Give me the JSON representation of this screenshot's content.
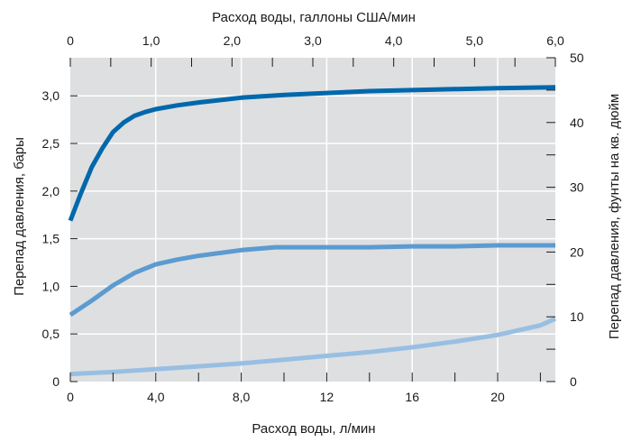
{
  "chart_data": {
    "type": "line",
    "title": "",
    "xlabel_bottom": "Расход воды, л/мин",
    "xlabel_top": "Расход воды, галлоны США/мин",
    "ylabel_left": "Перепад давления, бары",
    "ylabel_right": "Перепад давления, фунты на кв. дюйм",
    "xlim_bottom": [
      0,
      22.7
    ],
    "xlim_top": [
      0,
      6.0
    ],
    "ylim_left": [
      0,
      3.4
    ],
    "ylim_right": [
      0,
      50
    ],
    "x_bottom_ticks": [
      {
        "value": 0,
        "label": "0"
      },
      {
        "value": 4,
        "label": "4,0"
      },
      {
        "value": 8,
        "label": "8,0"
      },
      {
        "value": 12,
        "label": "12"
      },
      {
        "value": 16,
        "label": "16"
      },
      {
        "value": 20,
        "label": "20"
      }
    ],
    "x_bottom_minor": [
      2,
      6,
      10,
      14,
      18,
      22
    ],
    "x_top_ticks": [
      {
        "value": 0,
        "label": "0"
      },
      {
        "value": 1,
        "label": "1,0"
      },
      {
        "value": 2,
        "label": "2,0"
      },
      {
        "value": 3,
        "label": "3,0"
      },
      {
        "value": 4,
        "label": "4,0"
      },
      {
        "value": 5,
        "label": "5,0"
      },
      {
        "value": 6,
        "label": "6,0"
      }
    ],
    "x_top_minor": [
      0.5,
      1.5,
      2.5,
      3.5,
      4.5,
      5.5
    ],
    "y_left_ticks": [
      {
        "value": 0,
        "label": "0"
      },
      {
        "value": 0.5,
        "label": "0,5"
      },
      {
        "value": 1.0,
        "label": "1,0"
      },
      {
        "value": 1.5,
        "label": "1,5"
      },
      {
        "value": 2.0,
        "label": "2,0"
      },
      {
        "value": 2.5,
        "label": "2,5"
      },
      {
        "value": 3.0,
        "label": "3,0"
      }
    ],
    "y_right_ticks": [
      {
        "value": 0,
        "label": "0"
      },
      {
        "value": 10,
        "label": "10"
      },
      {
        "value": 20,
        "label": "20"
      },
      {
        "value": 30,
        "label": "30"
      },
      {
        "value": 40,
        "label": "40"
      },
      {
        "value": 50,
        "label": "50"
      }
    ],
    "y_right_minor": [
      5,
      15,
      25,
      35,
      45
    ],
    "grid": true,
    "background_color": "#dedfe0",
    "grid_color": "#ffffff",
    "series": [
      {
        "color": "#0068ac",
        "stroke": 5,
        "x": [
          0,
          0.5,
          1,
          1.5,
          2,
          2.5,
          3,
          3.5,
          4,
          5,
          6,
          8,
          10,
          12,
          14,
          16,
          18,
          20,
          22.7
        ],
        "y": [
          1.69,
          1.98,
          2.25,
          2.45,
          2.62,
          2.72,
          2.79,
          2.83,
          2.86,
          2.9,
          2.93,
          2.98,
          3.01,
          3.03,
          3.05,
          3.06,
          3.07,
          3.08,
          3.09
        ]
      },
      {
        "color": "#5b9bd1",
        "stroke": 5,
        "x": [
          0,
          1,
          2,
          3,
          4,
          5,
          6,
          8,
          9.6,
          10,
          12,
          14,
          16,
          18,
          20,
          22.7
        ],
        "y": [
          0.7,
          0.85,
          1.01,
          1.14,
          1.23,
          1.28,
          1.32,
          1.38,
          1.41,
          1.41,
          1.41,
          1.41,
          1.42,
          1.42,
          1.43,
          1.43
        ]
      },
      {
        "color": "#98bfe3",
        "stroke": 5,
        "x": [
          0,
          2,
          4,
          6,
          8,
          10,
          12,
          14,
          16,
          18,
          20,
          22,
          22.7
        ],
        "y": [
          0.08,
          0.1,
          0.13,
          0.16,
          0.19,
          0.23,
          0.27,
          0.31,
          0.36,
          0.42,
          0.49,
          0.59,
          0.66
        ]
      }
    ]
  }
}
